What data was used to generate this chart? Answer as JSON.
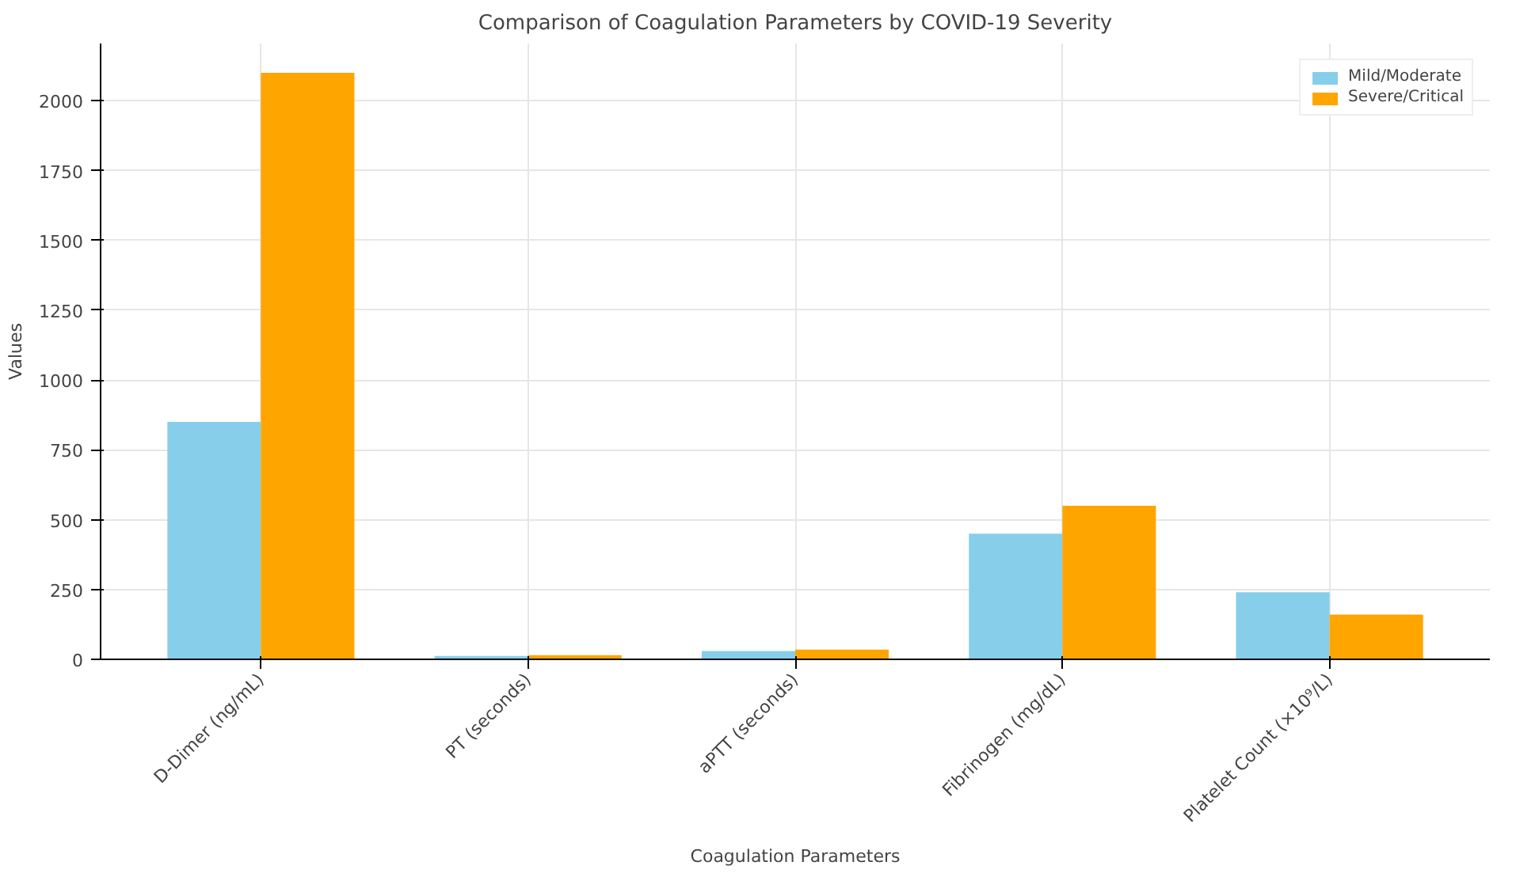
{
  "chart_data": {
    "type": "bar",
    "title": "Comparison of Coagulation Parameters by COVID-19 Severity",
    "xlabel": "Coagulation Parameters",
    "ylabel": "Values",
    "categories": [
      "D-Dimer (ng/mL)",
      "PT (seconds)",
      "aPTT (seconds)",
      "Fibrinogen (mg/dL)",
      "Platelet Count (×10⁹/L)"
    ],
    "series": [
      {
        "name": "Mild/Moderate",
        "color": "#87ceeb",
        "values": [
          850,
          12,
          30,
          450,
          240
        ]
      },
      {
        "name": "Severe/Critical",
        "color": "#ffa500",
        "values": [
          2100,
          15,
          35,
          550,
          160
        ]
      }
    ],
    "ylim": [
      0,
      2205
    ],
    "yticks": [
      0,
      250,
      500,
      750,
      1000,
      1250,
      1500,
      1750,
      2000
    ],
    "grid": true,
    "legend": "top right"
  }
}
